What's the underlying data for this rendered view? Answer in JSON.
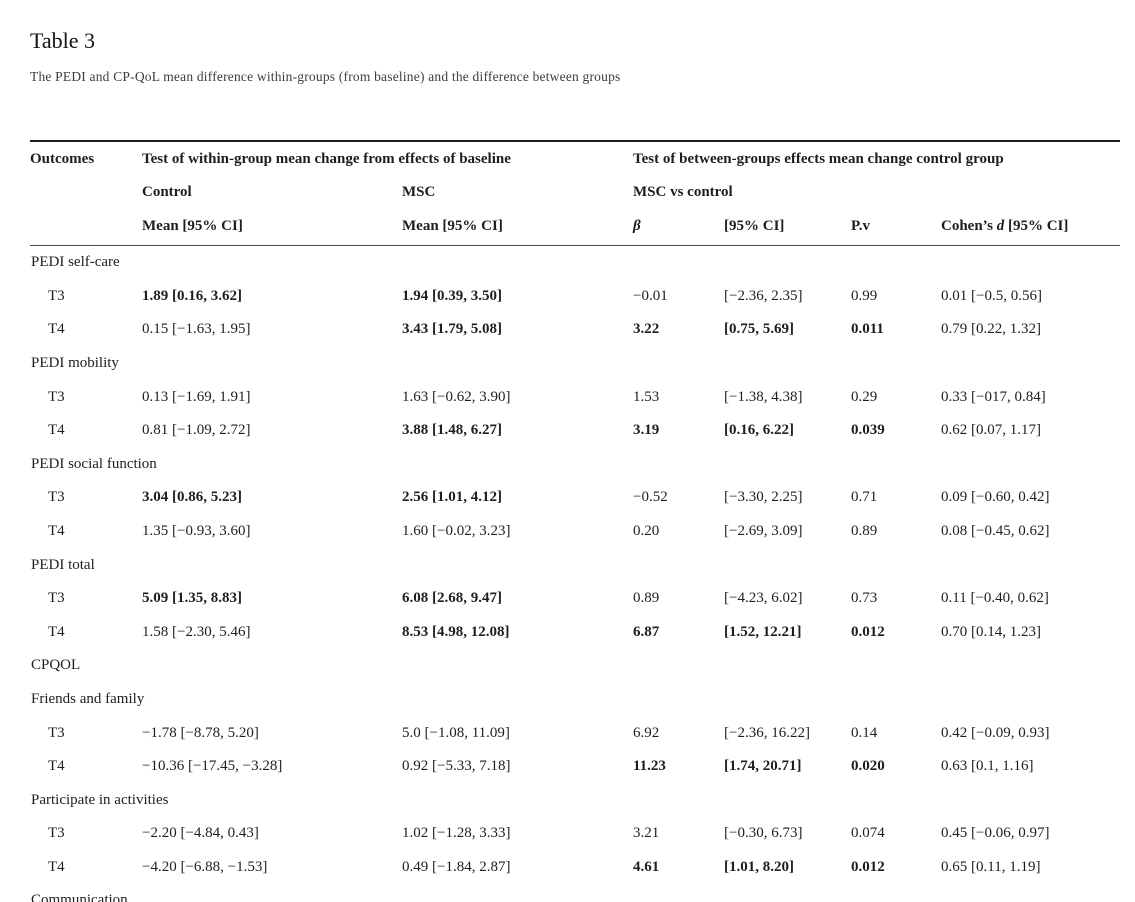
{
  "page": {
    "title": "Table 3",
    "caption": "The PEDI and CP-QoL mean difference within-groups (from baseline) and the difference between groups"
  },
  "table": {
    "header": {
      "outcomes": "Outcomes",
      "within_group_title": "Test of within-group mean change from effects of baseline",
      "between_group_title": "Test of between-groups effects mean change control group",
      "control_label": "Control",
      "msc_label": "MSC",
      "msc_vs_control_label": "MSC vs control",
      "control_mean_col": "Mean [95% CI]",
      "msc_mean_col": "Mean [95% CI]",
      "beta_col": "β",
      "ci_col": "[95% CI]",
      "pv_col": "P.v",
      "cohens_prefix": "Cohen’s ",
      "cohens_d": "d",
      "cohens_suffix": " [95% CI]"
    },
    "columns": [
      "control-mean",
      "msc-mean",
      "beta",
      "ci",
      "pv",
      "cohens-d"
    ],
    "rows": [
      {
        "type": "section",
        "label": "PEDI self-care"
      },
      {
        "type": "data",
        "label": "T3",
        "cells": [
          {
            "text": "1.89 [0.16, 3.62]",
            "bold": true
          },
          {
            "text": "1.94 [0.39, 3.50]",
            "bold": true
          },
          {
            "text": "−0.01",
            "bold": false
          },
          {
            "text": "[−2.36, 2.35]",
            "bold": false
          },
          {
            "text": "0.99",
            "bold": false
          },
          {
            "text": "0.01 [−0.5, 0.56]",
            "bold": false
          }
        ]
      },
      {
        "type": "data",
        "label": "T4",
        "cells": [
          {
            "text": "0.15 [−1.63, 1.95]",
            "bold": false
          },
          {
            "text": "3.43 [1.79, 5.08]",
            "bold": true
          },
          {
            "text": "3.22",
            "bold": true
          },
          {
            "text": "[0.75, 5.69]",
            "bold": true
          },
          {
            "text": "0.011",
            "bold": true
          },
          {
            "text": "0.79 [0.22, 1.32]",
            "bold": false
          }
        ]
      },
      {
        "type": "section",
        "label": "PEDI mobility"
      },
      {
        "type": "data",
        "label": "T3",
        "cells": [
          {
            "text": "0.13 [−1.69, 1.91]",
            "bold": false
          },
          {
            "text": "1.63 [−0.62, 3.90]",
            "bold": false
          },
          {
            "text": "1.53",
            "bold": false
          },
          {
            "text": "[−1.38, 4.38]",
            "bold": false
          },
          {
            "text": "0.29",
            "bold": false
          },
          {
            "text": "0.33 [−017, 0.84]",
            "bold": false
          }
        ]
      },
      {
        "type": "data",
        "label": "T4",
        "cells": [
          {
            "text": "0.81 [−1.09, 2.72]",
            "bold": false
          },
          {
            "text": "3.88 [1.48, 6.27]",
            "bold": true
          },
          {
            "text": "3.19",
            "bold": true
          },
          {
            "text": "[0.16, 6.22]",
            "bold": true
          },
          {
            "text": "0.039",
            "bold": true
          },
          {
            "text": "0.62 [0.07, 1.17]",
            "bold": false
          }
        ]
      },
      {
        "type": "section",
        "label": "PEDI social function"
      },
      {
        "type": "data",
        "label": "T3",
        "cells": [
          {
            "text": "3.04 [0.86, 5.23]",
            "bold": true
          },
          {
            "text": "2.56 [1.01, 4.12]",
            "bold": true
          },
          {
            "text": "−0.52",
            "bold": false
          },
          {
            "text": "[−3.30, 2.25]",
            "bold": false
          },
          {
            "text": "0.71",
            "bold": false
          },
          {
            "text": "0.09 [−0.60, 0.42]",
            "bold": false
          }
        ]
      },
      {
        "type": "data",
        "label": "T4",
        "cells": [
          {
            "text": "1.35 [−0.93, 3.60]",
            "bold": false
          },
          {
            "text": "1.60 [−0.02, 3.23]",
            "bold": false
          },
          {
            "text": "0.20",
            "bold": false
          },
          {
            "text": "[−2.69, 3.09]",
            "bold": false
          },
          {
            "text": "0.89",
            "bold": false
          },
          {
            "text": "0.08 [−0.45, 0.62]",
            "bold": false
          }
        ]
      },
      {
        "type": "section",
        "label": "PEDI total"
      },
      {
        "type": "data",
        "label": "T3",
        "cells": [
          {
            "text": "5.09 [1.35, 8.83]",
            "bold": true
          },
          {
            "text": "6.08 [2.68, 9.47]",
            "bold": true
          },
          {
            "text": "0.89",
            "bold": false
          },
          {
            "text": "[−4.23, 6.02]",
            "bold": false
          },
          {
            "text": "0.73",
            "bold": false
          },
          {
            "text": "0.11 [−0.40, 0.62]",
            "bold": false
          }
        ]
      },
      {
        "type": "data",
        "label": "T4",
        "cells": [
          {
            "text": "1.58 [−2.30, 5.46]",
            "bold": false
          },
          {
            "text": "8.53 [4.98, 12.08]",
            "bold": true
          },
          {
            "text": "6.87",
            "bold": true
          },
          {
            "text": "[1.52, 12.21]",
            "bold": true
          },
          {
            "text": "0.012",
            "bold": true
          },
          {
            "text": "0.70 [0.14, 1.23]",
            "bold": false
          }
        ]
      },
      {
        "type": "section",
        "label": "CPQOL"
      },
      {
        "type": "section",
        "label": "Friends and family"
      },
      {
        "type": "data",
        "label": "T3",
        "cells": [
          {
            "text": "−1.78 [−8.78, 5.20]",
            "bold": false
          },
          {
            "text": "5.0 [−1.08, 11.09]",
            "bold": false
          },
          {
            "text": "6.92",
            "bold": false
          },
          {
            "text": "[−2.36, 16.22]",
            "bold": false
          },
          {
            "text": "0.14",
            "bold": false
          },
          {
            "text": "0.42 [−0.09, 0.93]",
            "bold": false
          }
        ]
      },
      {
        "type": "data",
        "label": "T4",
        "cells": [
          {
            "text": "−10.36 [−17.45, −3.28]",
            "bold": false
          },
          {
            "text": "0.92 [−5.33, 7.18]",
            "bold": false
          },
          {
            "text": "11.23",
            "bold": true
          },
          {
            "text": "[1.74, 20.71]",
            "bold": true
          },
          {
            "text": "0.020",
            "bold": true
          },
          {
            "text": "0.63 [0.1, 1.16]",
            "bold": false
          }
        ]
      },
      {
        "type": "section",
        "label": "Participate in activities"
      },
      {
        "type": "data",
        "label": "T3",
        "cells": [
          {
            "text": "−2.20 [−4.84, 0.43]",
            "bold": false
          },
          {
            "text": "1.02 [−1.28, 3.33]",
            "bold": false
          },
          {
            "text": "3.21",
            "bold": false
          },
          {
            "text": "[−0.30, 6.73]",
            "bold": false
          },
          {
            "text": "0.074",
            "bold": false
          },
          {
            "text": "0.45 [−0.06, 0.97]",
            "bold": false
          }
        ]
      },
      {
        "type": "data",
        "label": "T4",
        "cells": [
          {
            "text": "−4.20 [−6.88, −1.53]",
            "bold": false
          },
          {
            "text": "0.49 [−1.84, 2.87]",
            "bold": false
          },
          {
            "text": "4.61",
            "bold": true
          },
          {
            "text": "[1.01, 8.20]",
            "bold": true
          },
          {
            "text": "0.012",
            "bold": true
          },
          {
            "text": "0.65 [0.11, 1.19]",
            "bold": false
          }
        ]
      },
      {
        "type": "section",
        "label": "Communication"
      }
    ]
  }
}
